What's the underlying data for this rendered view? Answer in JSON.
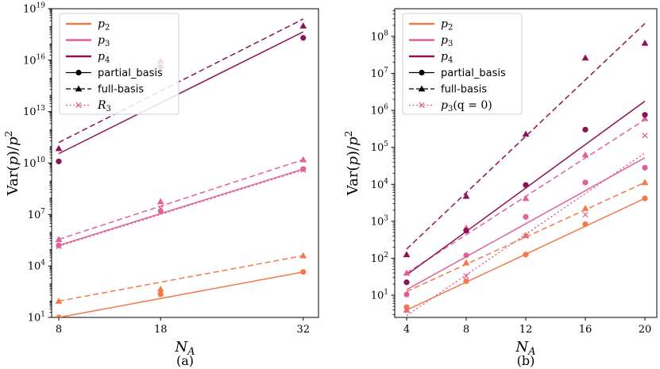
{
  "chart_data": [
    {
      "type": "line",
      "panel_label": "(a)",
      "xlabel": "N_A",
      "ylabel": "Var(p)/p^2",
      "yscale": "log",
      "x_ticks": [
        8,
        18,
        32
      ],
      "x_tick_labels": [
        "8",
        "18",
        "32"
      ],
      "y_ticks_exp": [
        1,
        4,
        7,
        10,
        13,
        16,
        19
      ],
      "xlim": [
        7.3,
        33.5
      ],
      "ylim_exp": [
        1,
        19
      ],
      "colors": {
        "p2": "#f4794a",
        "p3": "#e0619a",
        "p4": "#8c1257"
      },
      "legend": [
        {
          "label": "p",
          "sub": "2",
          "kind": "solid",
          "color": "#f4794a"
        },
        {
          "label": "p",
          "sub": "3",
          "kind": "solid",
          "color": "#e0619a"
        },
        {
          "label": "p",
          "sub": "4",
          "kind": "solid",
          "color": "#8c1257"
        },
        {
          "label": "partial_basis",
          "kind": "solid-circle",
          "color": "#000000"
        },
        {
          "label": "full-basis",
          "kind": "dashed-triangle",
          "color": "#000000"
        },
        {
          "label": "R",
          "sub": "3",
          "kind": "dotted-x",
          "color": "#e0619a"
        }
      ],
      "series": [
        {
          "name": "p2 partial_basis fit",
          "style": "solid",
          "color": "#f4794a",
          "x": [
            8,
            32
          ],
          "log10_y": [
            1.0,
            3.65
          ]
        },
        {
          "name": "p2 full-basis fit",
          "style": "dashed",
          "color": "#f4794a",
          "x": [
            8,
            32
          ],
          "log10_y": [
            1.95,
            4.6
          ]
        },
        {
          "name": "p3 partial_basis fit",
          "style": "solid",
          "color": "#e0619a",
          "x": [
            8,
            32
          ],
          "log10_y": [
            5.2,
            9.65
          ]
        },
        {
          "name": "p3 full-basis fit",
          "style": "dashed",
          "color": "#e0619a",
          "x": [
            8,
            32
          ],
          "log10_y": [
            5.55,
            10.2
          ]
        },
        {
          "name": "R3 fit",
          "style": "dotted",
          "color": "#e0619a",
          "x": [
            8,
            32
          ],
          "log10_y": [
            5.15,
            9.6
          ]
        },
        {
          "name": "p4 partial_basis fit",
          "style": "solid",
          "color": "#8c1257",
          "x": [
            8,
            32
          ],
          "log10_y": [
            10.55,
            17.65
          ]
        },
        {
          "name": "p4 full-basis fit",
          "style": "dashed",
          "color": "#8c1257",
          "x": [
            8,
            32
          ],
          "log10_y": [
            11.2,
            18.4
          ]
        }
      ],
      "points": [
        {
          "series": "p2",
          "marker": "circle",
          "color": "#f4794a",
          "x": [
            8,
            18,
            32
          ],
          "log10_y": [
            1.0,
            2.35,
            3.65
          ]
        },
        {
          "series": "p2",
          "marker": "triangle",
          "color": "#f4794a",
          "x": [
            8,
            18,
            32
          ],
          "log10_y": [
            1.95,
            2.65,
            4.6
          ]
        },
        {
          "series": "p3",
          "marker": "circle",
          "color": "#e0619a",
          "x": [
            8,
            18,
            32
          ],
          "log10_y": [
            5.2,
            7.2,
            9.65
          ]
        },
        {
          "series": "p3",
          "marker": "triangle",
          "color": "#e0619a",
          "x": [
            8,
            18,
            32
          ],
          "log10_y": [
            5.55,
            7.75,
            10.2
          ]
        },
        {
          "series": "R3",
          "marker": "x",
          "color": "#e0619a",
          "x": [
            8,
            18,
            32
          ],
          "log10_y": [
            5.15,
            7.35,
            9.6
          ]
        },
        {
          "series": "p4",
          "marker": "circle",
          "color": "#8c1257",
          "x": [
            8,
            18,
            32
          ],
          "log10_y": [
            10.1,
            15.6,
            17.3
          ]
        },
        {
          "series": "p4",
          "marker": "triangle",
          "color": "#8c1257",
          "x": [
            8,
            18,
            32
          ],
          "log10_y": [
            10.85,
            15.95,
            18.0
          ]
        }
      ]
    },
    {
      "type": "line",
      "panel_label": "(b)",
      "xlabel": "N_A",
      "ylabel": "Var(p)/p^2",
      "yscale": "log",
      "x_ticks": [
        4,
        8,
        12,
        16,
        20
      ],
      "x_tick_labels": [
        "4",
        "8",
        "12",
        "16",
        "20"
      ],
      "y_ticks_exp": [
        1,
        2,
        3,
        4,
        5,
        6,
        7,
        8
      ],
      "xlim": [
        3.2,
        20.8
      ],
      "ylim_exp": [
        0.4,
        8.75
      ],
      "colors": {
        "p2": "#f4794a",
        "p3": "#e0619a",
        "p4": "#8c1257"
      },
      "legend": [
        {
          "label": "p",
          "sub": "2",
          "kind": "solid",
          "color": "#f4794a"
        },
        {
          "label": "p",
          "sub": "3",
          "kind": "solid",
          "color": "#e0619a"
        },
        {
          "label": "p",
          "sub": "4",
          "kind": "solid",
          "color": "#8c1257"
        },
        {
          "label": "partial_basis",
          "kind": "solid-circle",
          "color": "#000000"
        },
        {
          "label": "full-basis",
          "kind": "dashed-triangle",
          "color": "#000000"
        },
        {
          "label": "p",
          "sub": "3",
          "suffix": "(q = 0)",
          "kind": "dotted-x",
          "color": "#e0619a"
        }
      ],
      "series": [
        {
          "name": "p2 partial_basis fit",
          "style": "solid",
          "color": "#f4794a",
          "x": [
            4,
            20
          ],
          "log10_y": [
            0.6,
            3.62
          ]
        },
        {
          "name": "p2 full-basis fit",
          "style": "dashed",
          "color": "#f4794a",
          "x": [
            4,
            20
          ],
          "log10_y": [
            1.1,
            4.05
          ]
        },
        {
          "name": "p3 partial_basis fit",
          "style": "solid",
          "color": "#e0619a",
          "x": [
            4,
            20
          ],
          "log10_y": [
            1.15,
            4.72
          ]
        },
        {
          "name": "p3 full-basis fit",
          "style": "dashed",
          "color": "#e0619a",
          "x": [
            4,
            20
          ],
          "log10_y": [
            1.6,
            5.75
          ]
        },
        {
          "name": "p3(q=0) fit",
          "style": "dotted",
          "color": "#e0619a",
          "x": [
            4,
            20
          ],
          "log10_y": [
            0.45,
            4.85
          ]
        },
        {
          "name": "p4 partial_basis fit",
          "style": "solid",
          "color": "#8c1257",
          "x": [
            4,
            20
          ],
          "log10_y": [
            1.55,
            6.25
          ]
        },
        {
          "name": "p4 full-basis fit",
          "style": "dashed",
          "color": "#8c1257",
          "x": [
            4,
            20
          ],
          "log10_y": [
            2.25,
            8.35
          ]
        }
      ],
      "points": [
        {
          "series": "p2",
          "marker": "circle",
          "color": "#f4794a",
          "x": [
            4,
            8,
            12,
            16,
            20
          ],
          "log10_y": [
            0.68,
            1.38,
            2.1,
            2.92,
            3.62
          ]
        },
        {
          "series": "p2",
          "marker": "triangle",
          "color": "#f4794a",
          "x": [
            4,
            8,
            12,
            16,
            20
          ],
          "log10_y": [
            0.6,
            1.88,
            2.62,
            3.35,
            4.05
          ]
        },
        {
          "series": "p3",
          "marker": "circle",
          "color": "#e0619a",
          "x": [
            4,
            8,
            12,
            16,
            20
          ],
          "log10_y": [
            1.02,
            2.08,
            3.12,
            4.05,
            4.45
          ]
        },
        {
          "series": "p3",
          "marker": "triangle",
          "color": "#e0619a",
          "x": [
            4,
            8,
            12,
            16,
            20
          ],
          "log10_y": [
            1.6,
            2.82,
            3.62,
            4.8,
            5.78
          ]
        },
        {
          "series": "p3(q=0)",
          "marker": "x",
          "color": "#e0619a",
          "x": [
            4,
            8,
            12,
            16,
            20
          ],
          "log10_y": [
            0.6,
            1.52,
            2.6,
            3.18,
            5.32
          ]
        },
        {
          "series": "p4",
          "marker": "circle",
          "color": "#8c1257",
          "x": [
            4,
            8,
            12,
            16,
            20
          ],
          "log10_y": [
            1.35,
            2.75,
            3.98,
            5.48,
            5.88
          ]
        },
        {
          "series": "p4",
          "marker": "triangle",
          "color": "#8c1257",
          "x": [
            4,
            8,
            12,
            16,
            20
          ],
          "log10_y": [
            2.1,
            3.68,
            5.36,
            7.42,
            7.82
          ]
        }
      ]
    }
  ]
}
